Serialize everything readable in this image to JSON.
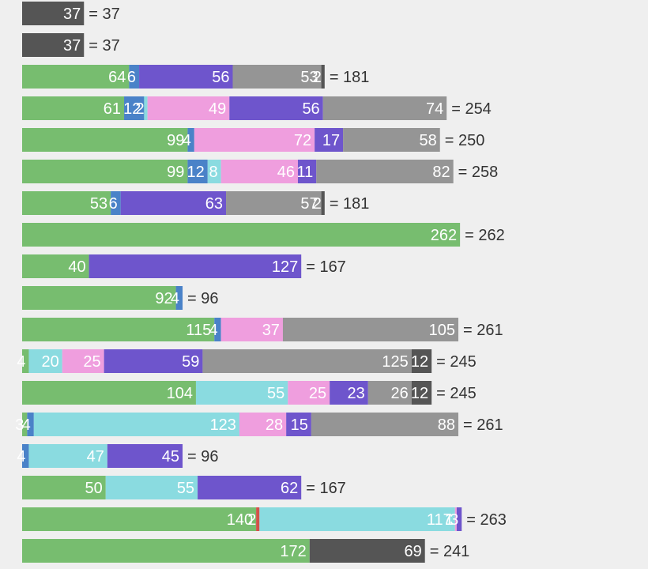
{
  "colors": {
    "background": "#efefef",
    "text": "#333333",
    "segment_text": "#ffffff",
    "palette": [
      "#77bd6f",
      "#4a82c8",
      "#d2524a",
      "#8adbe0",
      "#ef9ede",
      "#6e55cc",
      "#959595",
      "#555555"
    ]
  },
  "chart_data": {
    "type": "bar",
    "orientation": "horizontal",
    "stacked": true,
    "grid": false,
    "legend": "none",
    "xlim": [
      0,
      275
    ],
    "rows": [
      {
        "segments": [
          {
            "value": 37,
            "color": "#555555"
          }
        ],
        "total": 37
      },
      {
        "segments": [
          {
            "value": 37,
            "color": "#555555"
          }
        ],
        "total": 37
      },
      {
        "segments": [
          {
            "value": 64,
            "color": "#77bd6f"
          },
          {
            "value": 6,
            "color": "#4a82c8"
          },
          {
            "value": 56,
            "color": "#6e55cc"
          },
          {
            "value": 53,
            "color": "#959595"
          },
          {
            "value": 2,
            "color": "#555555"
          }
        ],
        "total": 181
      },
      {
        "segments": [
          {
            "value": 61,
            "color": "#77bd6f"
          },
          {
            "value": 12,
            "color": "#4a82c8"
          },
          {
            "value": 2,
            "color": "#8adbe0"
          },
          {
            "value": 49,
            "color": "#ef9ede"
          },
          {
            "value": 56,
            "color": "#6e55cc"
          },
          {
            "value": 74,
            "color": "#959595"
          }
        ],
        "total": 254
      },
      {
        "segments": [
          {
            "value": 99,
            "color": "#77bd6f"
          },
          {
            "value": 4,
            "color": "#4a82c8"
          },
          {
            "value": 72,
            "color": "#ef9ede"
          },
          {
            "value": 17,
            "color": "#6e55cc"
          },
          {
            "value": 58,
            "color": "#959595"
          }
        ],
        "total": 250
      },
      {
        "segments": [
          {
            "value": 99,
            "color": "#77bd6f"
          },
          {
            "value": 12,
            "color": "#4a82c8"
          },
          {
            "value": 8,
            "color": "#8adbe0"
          },
          {
            "value": 46,
            "color": "#ef9ede"
          },
          {
            "value": 11,
            "color": "#6e55cc"
          },
          {
            "value": 82,
            "color": "#959595"
          }
        ],
        "total": 258
      },
      {
        "segments": [
          {
            "value": 53,
            "color": "#77bd6f"
          },
          {
            "value": 6,
            "color": "#4a82c8"
          },
          {
            "value": 63,
            "color": "#6e55cc"
          },
          {
            "value": 57,
            "color": "#959595"
          },
          {
            "value": 2,
            "color": "#555555"
          }
        ],
        "total": 181
      },
      {
        "segments": [
          {
            "value": 262,
            "color": "#77bd6f"
          }
        ],
        "total": 262
      },
      {
        "segments": [
          {
            "value": 40,
            "color": "#77bd6f"
          },
          {
            "value": 127,
            "color": "#6e55cc"
          }
        ],
        "total": 167
      },
      {
        "segments": [
          {
            "value": 92,
            "color": "#77bd6f"
          },
          {
            "value": 4,
            "color": "#4a82c8"
          }
        ],
        "total": 96
      },
      {
        "segments": [
          {
            "value": 115,
            "color": "#77bd6f"
          },
          {
            "value": 4,
            "color": "#4a82c8"
          },
          {
            "value": 37,
            "color": "#ef9ede"
          },
          {
            "value": 105,
            "color": "#959595"
          }
        ],
        "total": 261
      },
      {
        "segments": [
          {
            "value": 4,
            "color": "#77bd6f"
          },
          {
            "value": 20,
            "color": "#8adbe0"
          },
          {
            "value": 25,
            "color": "#ef9ede"
          },
          {
            "value": 59,
            "color": "#6e55cc"
          },
          {
            "value": 125,
            "color": "#959595"
          },
          {
            "value": 12,
            "color": "#555555"
          }
        ],
        "total": 245
      },
      {
        "segments": [
          {
            "value": 104,
            "color": "#77bd6f"
          },
          {
            "value": 55,
            "color": "#8adbe0"
          },
          {
            "value": 25,
            "color": "#ef9ede"
          },
          {
            "value": 23,
            "color": "#6e55cc"
          },
          {
            "value": 26,
            "color": "#959595"
          },
          {
            "value": 12,
            "color": "#555555"
          }
        ],
        "total": 245
      },
      {
        "segments": [
          {
            "value": 3,
            "color": "#77bd6f"
          },
          {
            "value": 4,
            "color": "#4a82c8"
          },
          {
            "value": 123,
            "color": "#8adbe0"
          },
          {
            "value": 28,
            "color": "#ef9ede"
          },
          {
            "value": 15,
            "color": "#6e55cc"
          },
          {
            "value": 88,
            "color": "#959595"
          }
        ],
        "total": 261
      },
      {
        "segments": [
          {
            "value": 4,
            "color": "#4a82c8"
          },
          {
            "value": 47,
            "color": "#8adbe0"
          },
          {
            "value": 45,
            "color": "#6e55cc"
          }
        ],
        "total": 96
      },
      {
        "segments": [
          {
            "value": 50,
            "color": "#77bd6f"
          },
          {
            "value": 55,
            "color": "#8adbe0"
          },
          {
            "value": 62,
            "color": "#6e55cc"
          }
        ],
        "total": 167
      },
      {
        "segments": [
          {
            "value": 140,
            "color": "#77bd6f"
          },
          {
            "value": 2,
            "color": "#d2524a"
          },
          {
            "value": 117,
            "color": "#8adbe0"
          },
          {
            "value": 1,
            "color": "#ef9ede"
          },
          {
            "value": 3,
            "color": "#6e55cc"
          }
        ],
        "total": 263
      },
      {
        "segments": [
          {
            "value": 172,
            "color": "#77bd6f"
          },
          {
            "value": 69,
            "color": "#555555"
          }
        ],
        "total": 241
      }
    ]
  }
}
